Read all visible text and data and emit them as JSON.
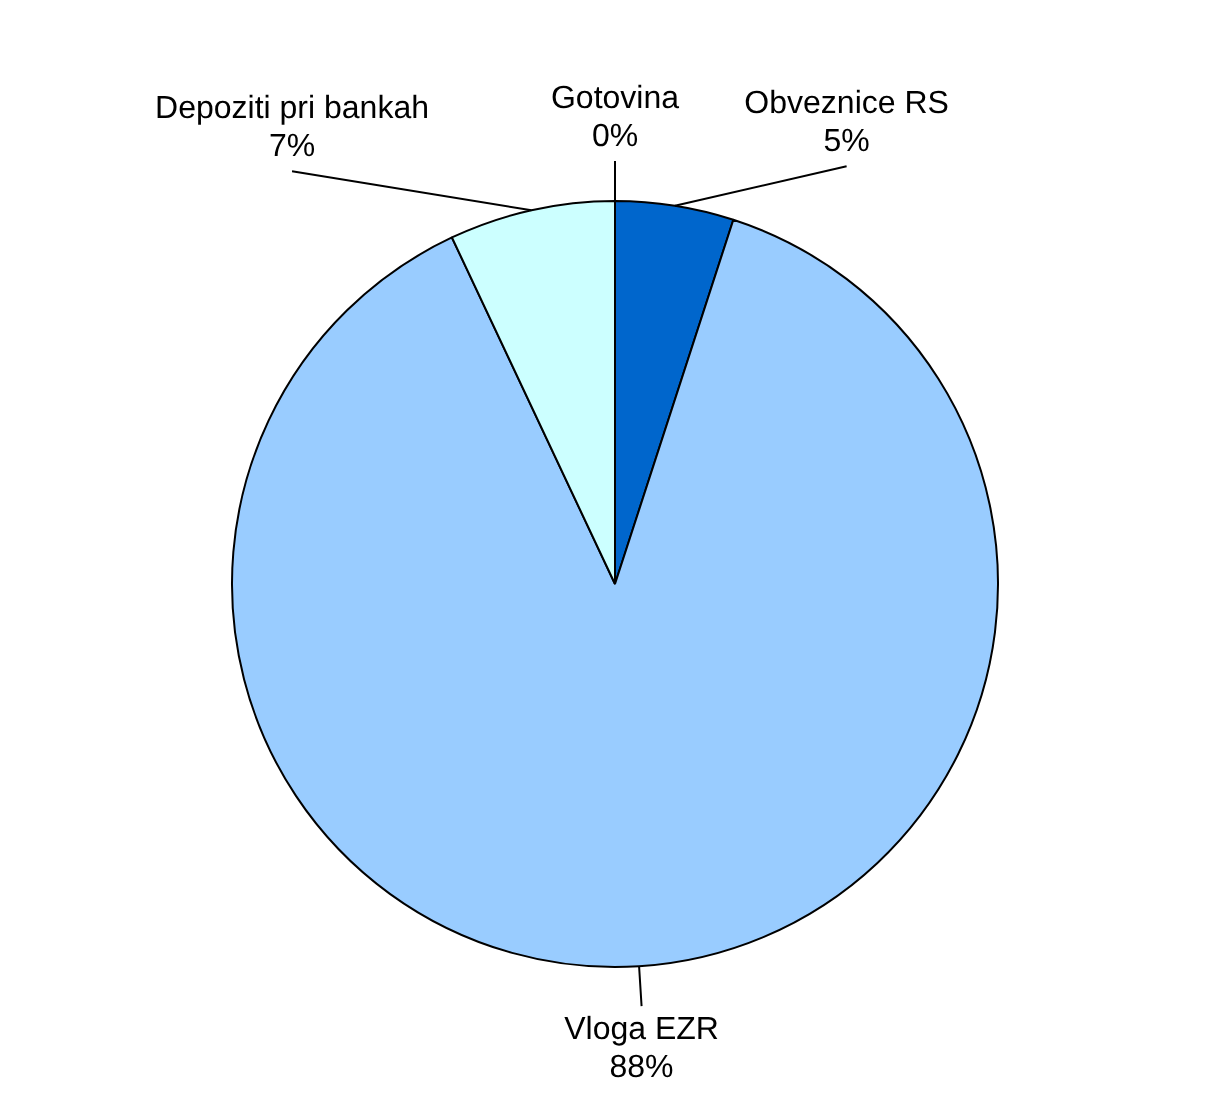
{
  "chart_data": {
    "type": "pie",
    "categories": [
      "Gotovina",
      "Obveznice RS",
      "Vloga EZR",
      "Depoziti pri bankah"
    ],
    "values": [
      0,
      5,
      88,
      7
    ],
    "colors": [
      "#ffffff",
      "#0066cc",
      "#99ccff",
      "#ccffff"
    ],
    "value_labels": [
      "0%",
      "5%",
      "88%",
      "7%"
    ],
    "legend": false
  }
}
